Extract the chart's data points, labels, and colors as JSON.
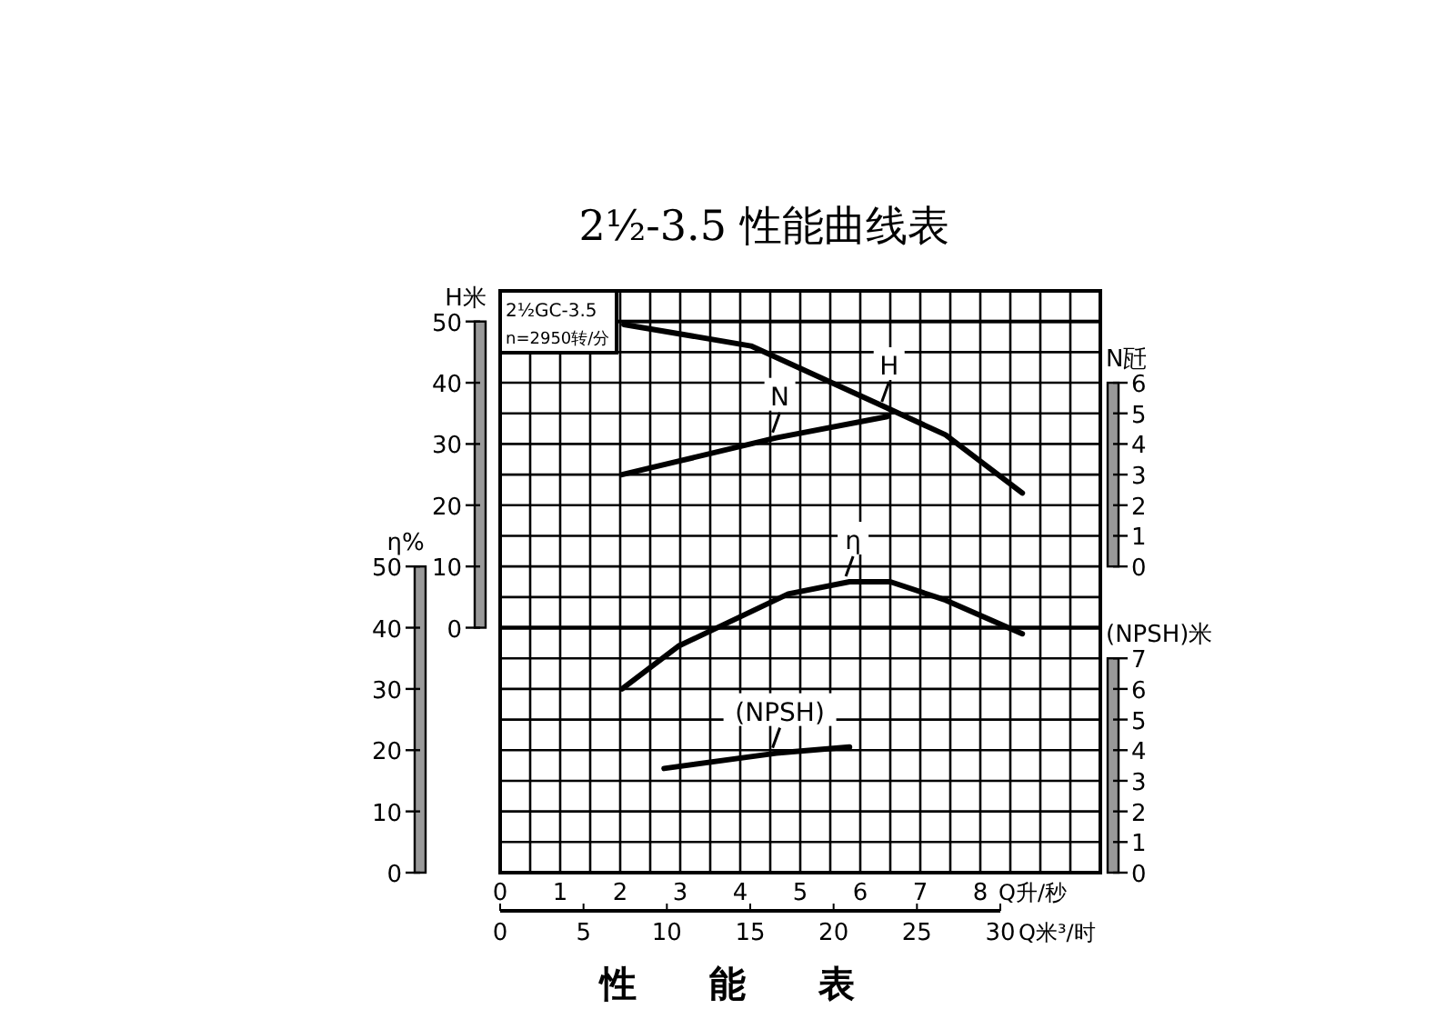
{
  "chart_data": [
    {
      "type": "line",
      "title": "2½-3.5 性能曲线表",
      "ylabel": "H米",
      "y2label": "N瓩",
      "xlim": [
        0,
        10
      ],
      "xticks": [
        0,
        {
          "value": 0.5,
          "label": null
        },
        1,
        {
          "value": 1.5,
          "label": null
        },
        2,
        {
          "value": 2.5,
          "label": null
        },
        3,
        {
          "value": 3.5,
          "label": null
        },
        4,
        {
          "value": 4.5,
          "label": null
        },
        5,
        {
          "value": 5.5,
          "label": null
        },
        6,
        {
          "value": 6.5,
          "label": null
        },
        7,
        {
          "value": 7.5,
          "label": null
        },
        8,
        {
          "value": 8.5,
          "label": null
        },
        {
          "value": 9,
          "label": null
        },
        {
          "value": 9.5,
          "label": null
        },
        {
          "value": 10,
          "label": null
        }
      ],
      "ylim": [
        0,
        50
      ],
      "yticks": [
        0,
        10,
        20,
        30,
        40,
        50
      ],
      "y2lim": [
        0,
        6
      ],
      "y2ticks": [
        0,
        1,
        2,
        3,
        4,
        5,
        6
      ],
      "tick_labels": "y",
      "grid": true,
      "line_style": "solid",
      "series": [
        {
          "name": "H",
          "color": "#000000",
          "x": [
            2.06,
            4.18,
            6.42,
            7.42,
            8.7
          ],
          "values": [
            49.5,
            46,
            36,
            31.5,
            22
          ]
        },
        {
          "name": "N",
          "color": "#000000",
          "axis": "y2",
          "x": [
            2.03,
            4.6,
            6.45
          ],
          "values": [
            3.0,
            4.2,
            4.9
          ]
        }
      ],
      "annotations": [
        "2½GC-3.5",
        "n=2950转/分"
      ]
    },
    {
      "type": "line",
      "xlabel": "Q升/秒",
      "x2label": "Q米³/时",
      "ylabel": "η%",
      "y2label": "(NPSH)米",
      "xlim": [
        0,
        10
      ],
      "xticks": [
        0,
        {
          "value": 0.5,
          "label": null
        },
        1,
        {
          "value": 1.5,
          "label": null
        },
        2,
        {
          "value": 2.5,
          "label": null
        },
        3,
        {
          "value": 3.5,
          "label": null
        },
        4,
        {
          "value": 4.5,
          "label": null
        },
        5,
        {
          "value": 5.5,
          "label": null
        },
        6,
        {
          "value": 6.5,
          "label": null
        },
        7,
        {
          "value": 7.5,
          "label": null
        },
        8,
        {
          "value": 8.5,
          "label": null
        },
        {
          "value": 9,
          "label": null
        },
        {
          "value": 9.5,
          "label": null
        },
        {
          "value": 10,
          "label": null
        }
      ],
      "x2lim": [
        0,
        36
      ],
      "x2ticks": [
        0,
        5,
        10,
        15,
        20,
        25,
        30
      ],
      "ylim": [
        0,
        50
      ],
      "yticks": [
        0,
        10,
        20,
        30,
        40,
        50
      ],
      "y2lim": [
        0,
        7
      ],
      "y2ticks": [
        0,
        1,
        2,
        3,
        4,
        5,
        6,
        7
      ],
      "grid": true,
      "line_style": "solid",
      "series": [
        {
          "name": "η",
          "color": "#000000",
          "x": [
            2.03,
            2.97,
            4.8,
            5.82,
            6.5,
            7.42,
            8.7
          ],
          "values": [
            30,
            37,
            45.5,
            47.5,
            47.5,
            44.5,
            39
          ]
        },
        {
          "name": "(NPSH)",
          "color": "#000000",
          "axis": "y2",
          "x": [
            2.73,
            4.6,
            5.82
          ],
          "values": [
            3.4,
            3.9,
            4.1
          ]
        }
      ],
      "annotations": [
        "性能表"
      ]
    }
  ]
}
